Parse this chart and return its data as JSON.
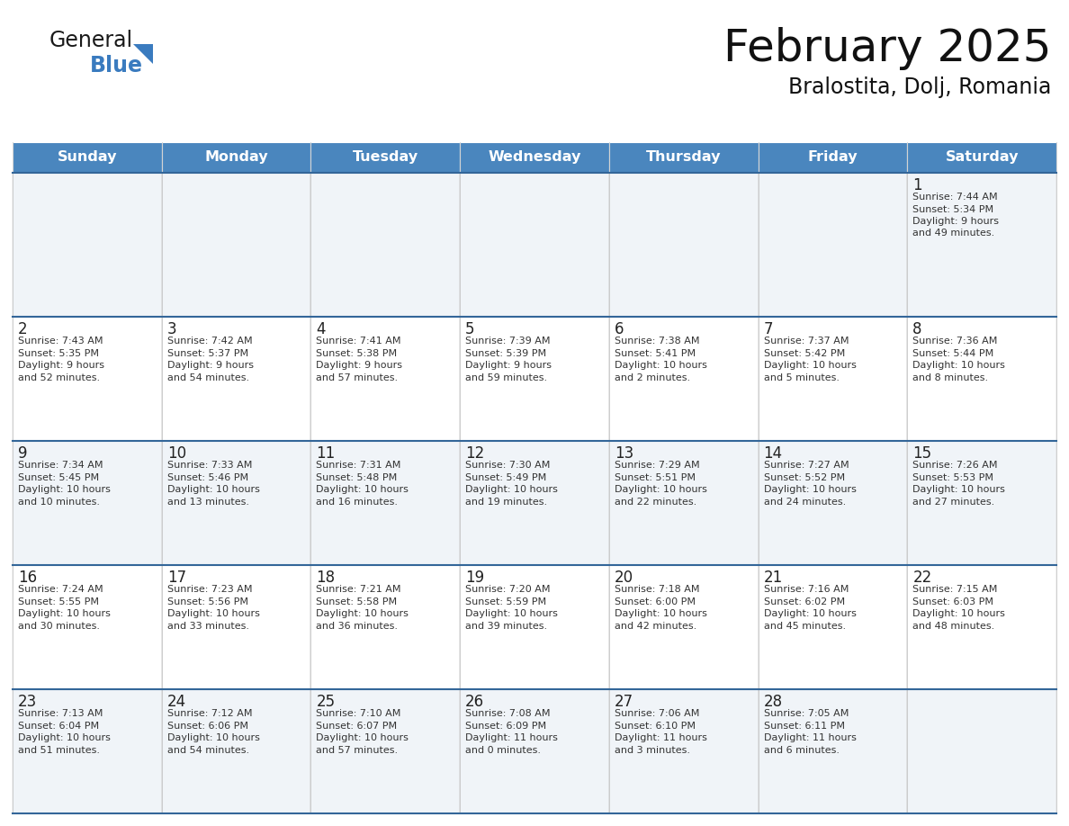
{
  "title": "February 2025",
  "subtitle": "Bralostita, Dolj, Romania",
  "header_color": "#4a86be",
  "header_text_color": "#ffffff",
  "cell_bg_odd": "#f0f4f8",
  "cell_bg_even": "#ffffff",
  "line_color": "#336699",
  "separator_color": "#c0c0c0",
  "text_color": "#222222",
  "small_text_color": "#333333",
  "days_of_week": [
    "Sunday",
    "Monday",
    "Tuesday",
    "Wednesday",
    "Thursday",
    "Friday",
    "Saturday"
  ],
  "calendar_data": [
    [
      null,
      null,
      null,
      null,
      null,
      null,
      {
        "day": 1,
        "sunrise": "7:44 AM",
        "sunset": "5:34 PM",
        "daylight": "9 hours",
        "daylight2": "and 49 minutes."
      }
    ],
    [
      {
        "day": 2,
        "sunrise": "7:43 AM",
        "sunset": "5:35 PM",
        "daylight": "9 hours",
        "daylight2": "and 52 minutes."
      },
      {
        "day": 3,
        "sunrise": "7:42 AM",
        "sunset": "5:37 PM",
        "daylight": "9 hours",
        "daylight2": "and 54 minutes."
      },
      {
        "day": 4,
        "sunrise": "7:41 AM",
        "sunset": "5:38 PM",
        "daylight": "9 hours",
        "daylight2": "and 57 minutes."
      },
      {
        "day": 5,
        "sunrise": "7:39 AM",
        "sunset": "5:39 PM",
        "daylight": "9 hours",
        "daylight2": "and 59 minutes."
      },
      {
        "day": 6,
        "sunrise": "7:38 AM",
        "sunset": "5:41 PM",
        "daylight": "10 hours",
        "daylight2": "and 2 minutes."
      },
      {
        "day": 7,
        "sunrise": "7:37 AM",
        "sunset": "5:42 PM",
        "daylight": "10 hours",
        "daylight2": "and 5 minutes."
      },
      {
        "day": 8,
        "sunrise": "7:36 AM",
        "sunset": "5:44 PM",
        "daylight": "10 hours",
        "daylight2": "and 8 minutes."
      }
    ],
    [
      {
        "day": 9,
        "sunrise": "7:34 AM",
        "sunset": "5:45 PM",
        "daylight": "10 hours",
        "daylight2": "and 10 minutes."
      },
      {
        "day": 10,
        "sunrise": "7:33 AM",
        "sunset": "5:46 PM",
        "daylight": "10 hours",
        "daylight2": "and 13 minutes."
      },
      {
        "day": 11,
        "sunrise": "7:31 AM",
        "sunset": "5:48 PM",
        "daylight": "10 hours",
        "daylight2": "and 16 minutes."
      },
      {
        "day": 12,
        "sunrise": "7:30 AM",
        "sunset": "5:49 PM",
        "daylight": "10 hours",
        "daylight2": "and 19 minutes."
      },
      {
        "day": 13,
        "sunrise": "7:29 AM",
        "sunset": "5:51 PM",
        "daylight": "10 hours",
        "daylight2": "and 22 minutes."
      },
      {
        "day": 14,
        "sunrise": "7:27 AM",
        "sunset": "5:52 PM",
        "daylight": "10 hours",
        "daylight2": "and 24 minutes."
      },
      {
        "day": 15,
        "sunrise": "7:26 AM",
        "sunset": "5:53 PM",
        "daylight": "10 hours",
        "daylight2": "and 27 minutes."
      }
    ],
    [
      {
        "day": 16,
        "sunrise": "7:24 AM",
        "sunset": "5:55 PM",
        "daylight": "10 hours",
        "daylight2": "and 30 minutes."
      },
      {
        "day": 17,
        "sunrise": "7:23 AM",
        "sunset": "5:56 PM",
        "daylight": "10 hours",
        "daylight2": "and 33 minutes."
      },
      {
        "day": 18,
        "sunrise": "7:21 AM",
        "sunset": "5:58 PM",
        "daylight": "10 hours",
        "daylight2": "and 36 minutes."
      },
      {
        "day": 19,
        "sunrise": "7:20 AM",
        "sunset": "5:59 PM",
        "daylight": "10 hours",
        "daylight2": "and 39 minutes."
      },
      {
        "day": 20,
        "sunrise": "7:18 AM",
        "sunset": "6:00 PM",
        "daylight": "10 hours",
        "daylight2": "and 42 minutes."
      },
      {
        "day": 21,
        "sunrise": "7:16 AM",
        "sunset": "6:02 PM",
        "daylight": "10 hours",
        "daylight2": "and 45 minutes."
      },
      {
        "day": 22,
        "sunrise": "7:15 AM",
        "sunset": "6:03 PM",
        "daylight": "10 hours",
        "daylight2": "and 48 minutes."
      }
    ],
    [
      {
        "day": 23,
        "sunrise": "7:13 AM",
        "sunset": "6:04 PM",
        "daylight": "10 hours",
        "daylight2": "and 51 minutes."
      },
      {
        "day": 24,
        "sunrise": "7:12 AM",
        "sunset": "6:06 PM",
        "daylight": "10 hours",
        "daylight2": "and 54 minutes."
      },
      {
        "day": 25,
        "sunrise": "7:10 AM",
        "sunset": "6:07 PM",
        "daylight": "10 hours",
        "daylight2": "and 57 minutes."
      },
      {
        "day": 26,
        "sunrise": "7:08 AM",
        "sunset": "6:09 PM",
        "daylight": "11 hours",
        "daylight2": "and 0 minutes."
      },
      {
        "day": 27,
        "sunrise": "7:06 AM",
        "sunset": "6:10 PM",
        "daylight": "11 hours",
        "daylight2": "and 3 minutes."
      },
      {
        "day": 28,
        "sunrise": "7:05 AM",
        "sunset": "6:11 PM",
        "daylight": "11 hours",
        "daylight2": "and 6 minutes."
      },
      null
    ]
  ],
  "logo_color_general": "#1a1a1a",
  "logo_color_blue": "#3a7bbf",
  "logo_triangle_color": "#3a7bbf"
}
